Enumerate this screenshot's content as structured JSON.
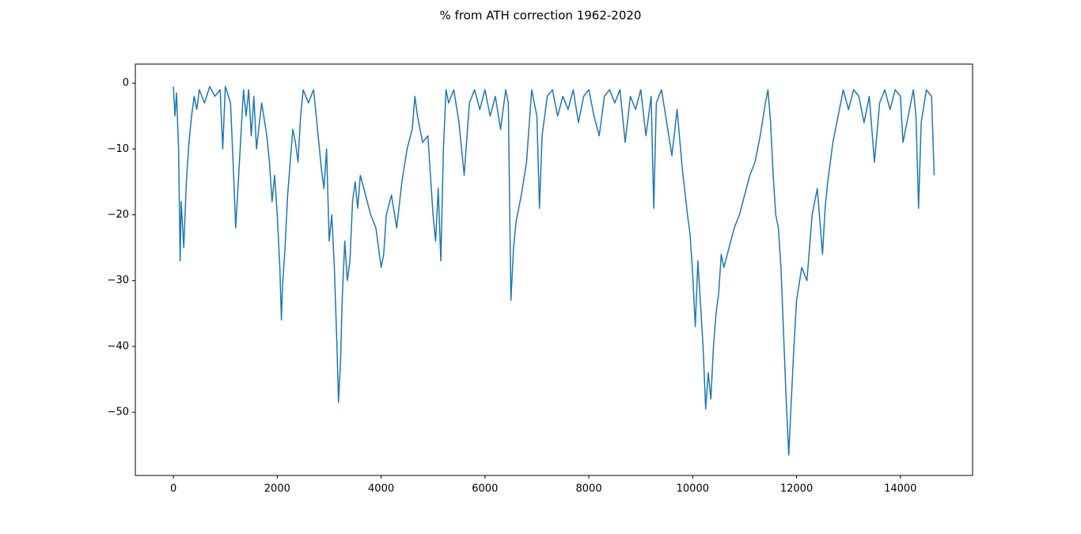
{
  "chart_data": {
    "type": "line",
    "title": "% from ATH correction 1962-2020",
    "x": [
      0,
      30,
      60,
      100,
      130,
      150,
      200,
      250,
      300,
      350,
      400,
      450,
      500,
      600,
      700,
      800,
      900,
      950,
      1000,
      1100,
      1150,
      1200,
      1250,
      1300,
      1350,
      1400,
      1450,
      1500,
      1550,
      1600,
      1700,
      1800,
      1850,
      1900,
      1950,
      2000,
      2050,
      2080,
      2100,
      2150,
      2200,
      2250,
      2300,
      2350,
      2400,
      2450,
      2500,
      2600,
      2700,
      2750,
      2800,
      2850,
      2900,
      2950,
      3000,
      3050,
      3100,
      3150,
      3180,
      3220,
      3250,
      3300,
      3350,
      3400,
      3450,
      3500,
      3550,
      3600,
      3700,
      3800,
      3900,
      4000,
      4050,
      4100,
      4200,
      4300,
      4400,
      4500,
      4600,
      4650,
      4700,
      4800,
      4900,
      5000,
      5050,
      5100,
      5150,
      5200,
      5250,
      5300,
      5400,
      5500,
      5600,
      5700,
      5800,
      5900,
      6000,
      6100,
      6200,
      6300,
      6400,
      6450,
      6500,
      6550,
      6600,
      6700,
      6800,
      6900,
      7000,
      7050,
      7100,
      7200,
      7300,
      7400,
      7500,
      7600,
      7700,
      7800,
      7900,
      8000,
      8100,
      8200,
      8300,
      8400,
      8500,
      8600,
      8700,
      8800,
      8900,
      9000,
      9100,
      9200,
      9250,
      9300,
      9400,
      9500,
      9600,
      9700,
      9800,
      9900,
      9950,
      10000,
      10050,
      10100,
      10200,
      10250,
      10300,
      10350,
      10400,
      10450,
      10500,
      10550,
      10600,
      10700,
      10800,
      10900,
      11000,
      11100,
      11200,
      11300,
      11400,
      11450,
      11500,
      11550,
      11600,
      11650,
      11700,
      11750,
      11800,
      11850,
      11900,
      11950,
      12000,
      12100,
      12200,
      12300,
      12400,
      12500,
      12550,
      12600,
      12700,
      12800,
      12900,
      13000,
      13100,
      13200,
      13300,
      13400,
      13500,
      13600,
      13700,
      13800,
      13900,
      14000,
      14050,
      14150,
      14200,
      14250,
      14300,
      14350,
      14400,
      14500,
      14600,
      14650
    ],
    "series": [
      {
        "color": "#1f77b4",
        "values": [
          -0.5,
          -5,
          -1.5,
          -10,
          -27,
          -18,
          -25,
          -15,
          -9,
          -5,
          -2,
          -4,
          -1,
          -3,
          -0.5,
          -2,
          -1,
          -10,
          -0.5,
          -3,
          -12,
          -22,
          -15,
          -8,
          -1,
          -5,
          -1,
          -8,
          -2,
          -10,
          -3,
          -8,
          -12,
          -18,
          -14,
          -20,
          -28,
          -36,
          -31,
          -25,
          -17,
          -12,
          -7,
          -9,
          -12,
          -5,
          -1,
          -3,
          -1,
          -5,
          -9,
          -13,
          -16,
          -10,
          -24,
          -20,
          -28,
          -40,
          -48.5,
          -42,
          -33,
          -24,
          -30,
          -27,
          -18,
          -15,
          -19,
          -14,
          -17,
          -20,
          -22,
          -28,
          -26,
          -20,
          -17,
          -22,
          -15,
          -10,
          -7,
          -2,
          -5,
          -9,
          -8,
          -20,
          -24,
          -16,
          -27,
          -10,
          -1,
          -3,
          -1,
          -6,
          -14,
          -3,
          -1,
          -4,
          -1,
          -5,
          -2,
          -7,
          -1,
          -3,
          -33,
          -25,
          -21,
          -17,
          -12,
          -1,
          -5,
          -19,
          -8,
          -2,
          -1,
          -5,
          -2,
          -4,
          -1,
          -6,
          -2,
          -1,
          -5,
          -8,
          -2,
          -1,
          -3,
          -1,
          -9,
          -2,
          -4,
          -1,
          -8,
          -2,
          -19,
          -3,
          -1,
          -6,
          -11,
          -4,
          -13,
          -20,
          -23,
          -29,
          -37,
          -27,
          -40,
          -49.5,
          -44,
          -48,
          -40,
          -35,
          -32,
          -26,
          -28,
          -25,
          -22,
          -20,
          -17,
          -14,
          -12,
          -8,
          -3,
          -1,
          -6,
          -14,
          -20,
          -22,
          -28,
          -38,
          -48,
          -56.5,
          -48,
          -40,
          -33,
          -28,
          -30,
          -20,
          -16,
          -26,
          -19,
          -15,
          -9,
          -5,
          -1,
          -4,
          -1,
          -2,
          -6,
          -2,
          -12,
          -3,
          -1,
          -4,
          -1,
          -2,
          -9,
          -5,
          -3,
          -1,
          -5,
          -19,
          -6,
          -1,
          -2,
          -14
        ]
      }
    ],
    "xlim": [
      -733,
      15390
    ],
    "ylim": [
      -59.6,
      2.9
    ],
    "xticks": [
      0,
      2000,
      4000,
      6000,
      8000,
      10000,
      12000,
      14000
    ],
    "yticks": [
      {
        "value": -50,
        "label": "−50"
      },
      {
        "value": -40,
        "label": "−40"
      },
      {
        "value": -30,
        "label": "−30"
      },
      {
        "value": -20,
        "label": "−20"
      },
      {
        "value": -10,
        "label": "−10"
      },
      0
    ],
    "grid": false
  }
}
